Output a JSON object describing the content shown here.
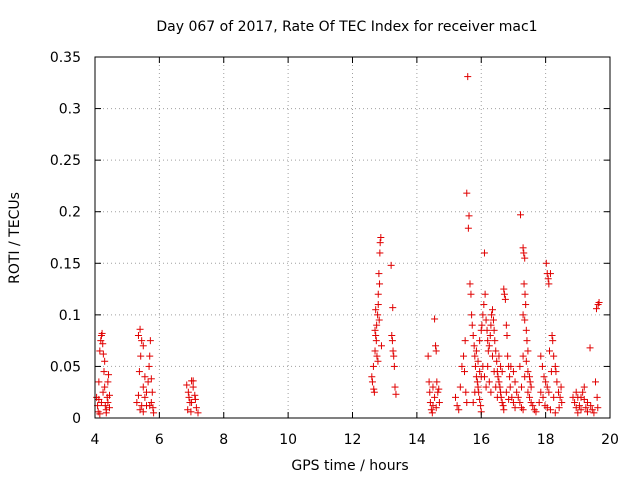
{
  "chart_data": {
    "type": "scatter",
    "title": "Day 067 of 2017, Rate Of TEC Index for receiver mac1",
    "xlabel": "GPS time / hours",
    "ylabel": "ROTI / TECUs",
    "xlim": [
      4,
      20
    ],
    "ylim": [
      0,
      0.35
    ],
    "x_ticks": [
      "4",
      "6",
      "8",
      "10",
      "12",
      "14",
      "16",
      "18",
      "20"
    ],
    "y_ticks": [
      "0",
      "0.05",
      "0.1",
      "0.15",
      "0.2",
      "0.25",
      "0.3",
      "0.35"
    ],
    "grid": true,
    "marker": "+",
    "color": "#e00000",
    "series": [
      {
        "name": "ROTI",
        "points": [
          [
            4.05,
            0.02
          ],
          [
            4.08,
            0.012
          ],
          [
            4.1,
            0.006
          ],
          [
            4.12,
            0.018
          ],
          [
            4.15,
            0.065
          ],
          [
            4.18,
            0.075
          ],
          [
            4.2,
            0.08
          ],
          [
            4.22,
            0.082
          ],
          [
            4.24,
            0.072
          ],
          [
            4.26,
            0.062
          ],
          [
            4.28,
            0.045
          ],
          [
            4.3,
            0.03
          ],
          [
            4.32,
            0.012
          ],
          [
            4.35,
            0.008
          ],
          [
            4.38,
            0.02
          ],
          [
            4.4,
            0.035
          ],
          [
            4.42,
            0.042
          ],
          [
            4.45,
            0.01
          ],
          [
            4.12,
            0.035
          ],
          [
            4.3,
            0.055
          ],
          [
            4.2,
            0.015
          ],
          [
            4.25,
            0.025
          ],
          [
            4.35,
            0.005
          ],
          [
            4.4,
            0.015
          ],
          [
            4.15,
            0.004
          ],
          [
            4.45,
            0.022
          ],
          [
            5.35,
            0.08
          ],
          [
            5.4,
            0.086
          ],
          [
            5.45,
            0.075
          ],
          [
            5.5,
            0.07
          ],
          [
            5.42,
            0.06
          ],
          [
            5.38,
            0.045
          ],
          [
            5.5,
            0.03
          ],
          [
            5.55,
            0.02
          ],
          [
            5.6,
            0.012
          ],
          [
            5.65,
            0.035
          ],
          [
            5.68,
            0.05
          ],
          [
            5.7,
            0.06
          ],
          [
            5.72,
            0.075
          ],
          [
            5.75,
            0.038
          ],
          [
            5.78,
            0.025
          ],
          [
            5.8,
            0.01
          ],
          [
            5.82,
            0.005
          ],
          [
            5.45,
            0.012
          ],
          [
            5.5,
            0.006
          ],
          [
            5.6,
            0.025
          ],
          [
            5.3,
            0.015
          ],
          [
            5.35,
            0.022
          ],
          [
            5.4,
            0.008
          ],
          [
            5.55,
            0.04
          ],
          [
            5.7,
            0.012
          ],
          [
            5.75,
            0.015
          ],
          [
            6.85,
            0.032
          ],
          [
            6.9,
            0.025
          ],
          [
            6.95,
            0.015
          ],
          [
            6.88,
            0.008
          ],
          [
            6.92,
            0.02
          ],
          [
            7.0,
            0.036
          ],
          [
            7.05,
            0.03
          ],
          [
            7.1,
            0.022
          ],
          [
            7.15,
            0.01
          ],
          [
            7.2,
            0.005
          ],
          [
            7.0,
            0.015
          ],
          [
            7.05,
            0.036
          ],
          [
            6.98,
            0.006
          ],
          [
            7.12,
            0.018
          ],
          [
            12.6,
            0.04
          ],
          [
            12.62,
            0.035
          ],
          [
            12.65,
            0.05
          ],
          [
            12.68,
            0.025
          ],
          [
            12.7,
            0.065
          ],
          [
            12.72,
            0.08
          ],
          [
            12.75,
            0.09
          ],
          [
            12.78,
            0.1
          ],
          [
            12.8,
            0.12
          ],
          [
            12.82,
            0.14
          ],
          [
            12.85,
            0.16
          ],
          [
            12.88,
            0.175
          ],
          [
            12.86,
            0.17
          ],
          [
            12.76,
            0.06
          ],
          [
            12.74,
            0.075
          ],
          [
            12.7,
            0.085
          ],
          [
            12.8,
            0.11
          ],
          [
            12.84,
            0.13
          ],
          [
            12.83,
            0.095
          ],
          [
            12.66,
            0.028
          ],
          [
            12.9,
            0.07
          ],
          [
            12.72,
            0.105
          ],
          [
            12.79,
            0.055
          ],
          [
            13.2,
            0.148
          ],
          [
            13.25,
            0.107
          ],
          [
            13.22,
            0.08
          ],
          [
            13.24,
            0.075
          ],
          [
            13.26,
            0.065
          ],
          [
            13.28,
            0.06
          ],
          [
            13.3,
            0.05
          ],
          [
            13.32,
            0.03
          ],
          [
            13.35,
            0.023
          ],
          [
            14.35,
            0.06
          ],
          [
            14.38,
            0.035
          ],
          [
            14.4,
            0.025
          ],
          [
            14.42,
            0.015
          ],
          [
            14.45,
            0.008
          ],
          [
            14.48,
            0.005
          ],
          [
            14.5,
            0.012
          ],
          [
            14.55,
            0.096
          ],
          [
            14.58,
            0.07
          ],
          [
            14.6,
            0.065
          ],
          [
            14.62,
            0.035
          ],
          [
            14.65,
            0.025
          ],
          [
            14.7,
            0.015
          ],
          [
            14.55,
            0.02
          ],
          [
            14.6,
            0.01
          ],
          [
            14.68,
            0.028
          ],
          [
            14.5,
            0.03
          ],
          [
            15.2,
            0.02
          ],
          [
            15.25,
            0.012
          ],
          [
            15.3,
            0.008
          ],
          [
            15.35,
            0.03
          ],
          [
            15.4,
            0.05
          ],
          [
            15.45,
            0.06
          ],
          [
            15.5,
            0.075
          ],
          [
            15.48,
            0.045
          ],
          [
            15.52,
            0.025
          ],
          [
            15.55,
            0.015
          ],
          [
            15.58,
            0.331
          ],
          [
            15.55,
            0.218
          ],
          [
            15.62,
            0.196
          ],
          [
            15.6,
            0.184
          ],
          [
            15.65,
            0.13
          ],
          [
            15.68,
            0.12
          ],
          [
            15.7,
            0.1
          ],
          [
            15.72,
            0.09
          ],
          [
            15.75,
            0.08
          ],
          [
            15.78,
            0.07
          ],
          [
            15.8,
            0.06
          ],
          [
            15.82,
            0.05
          ],
          [
            15.85,
            0.04
          ],
          [
            15.88,
            0.035
          ],
          [
            15.9,
            0.03
          ],
          [
            15.92,
            0.025
          ],
          [
            15.95,
            0.018
          ],
          [
            15.98,
            0.012
          ],
          [
            16.0,
            0.006
          ],
          [
            15.75,
            0.015
          ],
          [
            15.8,
            0.025
          ],
          [
            15.85,
            0.065
          ],
          [
            15.9,
            0.055
          ],
          [
            15.95,
            0.075
          ],
          [
            16.0,
            0.085
          ],
          [
            16.02,
            0.09
          ],
          [
            16.05,
            0.1
          ],
          [
            16.08,
            0.11
          ],
          [
            16.1,
            0.16
          ],
          [
            16.12,
            0.12
          ],
          [
            16.15,
            0.095
          ],
          [
            16.18,
            0.085
          ],
          [
            16.2,
            0.075
          ],
          [
            16.22,
            0.065
          ],
          [
            16.25,
            0.07
          ],
          [
            16.28,
            0.08
          ],
          [
            16.3,
            0.09
          ],
          [
            16.32,
            0.1
          ],
          [
            16.35,
            0.105
          ],
          [
            16.38,
            0.095
          ],
          [
            16.4,
            0.085
          ],
          [
            16.42,
            0.075
          ],
          [
            16.45,
            0.065
          ],
          [
            16.48,
            0.055
          ],
          [
            16.5,
            0.045
          ],
          [
            16.52,
            0.04
          ],
          [
            16.55,
            0.035
          ],
          [
            16.58,
            0.03
          ],
          [
            16.6,
            0.025
          ],
          [
            16.62,
            0.02
          ],
          [
            16.65,
            0.015
          ],
          [
            16.68,
            0.012
          ],
          [
            16.7,
            0.008
          ],
          [
            16.1,
            0.04
          ],
          [
            16.15,
            0.03
          ],
          [
            16.2,
            0.05
          ],
          [
            16.25,
            0.035
          ],
          [
            16.3,
            0.025
          ],
          [
            16.35,
            0.06
          ],
          [
            16.4,
            0.045
          ],
          [
            16.45,
            0.03
          ],
          [
            16.5,
            0.02
          ],
          [
            16.55,
            0.06
          ],
          [
            16.6,
            0.05
          ],
          [
            16.65,
            0.045
          ],
          [
            16.05,
            0.05
          ],
          [
            16.0,
            0.04
          ],
          [
            15.95,
            0.045
          ],
          [
            16.7,
            0.125
          ],
          [
            16.72,
            0.12
          ],
          [
            16.75,
            0.115
          ],
          [
            16.78,
            0.09
          ],
          [
            16.8,
            0.08
          ],
          [
            16.82,
            0.06
          ],
          [
            16.85,
            0.05
          ],
          [
            16.88,
            0.04
          ],
          [
            16.9,
            0.03
          ],
          [
            16.95,
            0.02
          ],
          [
            17.0,
            0.015
          ],
          [
            17.05,
            0.01
          ],
          [
            16.78,
            0.025
          ],
          [
            16.85,
            0.018
          ],
          [
            16.92,
            0.05
          ],
          [
            17.0,
            0.045
          ],
          [
            17.05,
            0.035
          ],
          [
            17.1,
            0.025
          ],
          [
            17.15,
            0.02
          ],
          [
            17.2,
            0.015
          ],
          [
            17.25,
            0.01
          ],
          [
            17.3,
            0.008
          ],
          [
            17.22,
            0.197
          ],
          [
            17.3,
            0.165
          ],
          [
            17.32,
            0.16
          ],
          [
            17.35,
            0.155
          ],
          [
            17.33,
            0.13
          ],
          [
            17.36,
            0.12
          ],
          [
            17.38,
            0.11
          ],
          [
            17.3,
            0.1
          ],
          [
            17.35,
            0.095
          ],
          [
            17.4,
            0.085
          ],
          [
            17.42,
            0.075
          ],
          [
            17.45,
            0.065
          ],
          [
            17.4,
            0.055
          ],
          [
            17.45,
            0.045
          ],
          [
            17.5,
            0.04
          ],
          [
            17.52,
            0.035
          ],
          [
            17.55,
            0.03
          ],
          [
            17.5,
            0.02
          ],
          [
            17.55,
            0.015
          ],
          [
            17.6,
            0.012
          ],
          [
            17.65,
            0.008
          ],
          [
            17.7,
            0.006
          ],
          [
            17.3,
            0.06
          ],
          [
            17.35,
            0.04
          ],
          [
            17.25,
            0.03
          ],
          [
            17.2,
            0.05
          ],
          [
            17.45,
            0.025
          ],
          [
            17.85,
            0.06
          ],
          [
            17.9,
            0.05
          ],
          [
            17.95,
            0.04
          ],
          [
            18.0,
            0.035
          ],
          [
            18.05,
            0.03
          ],
          [
            18.1,
            0.025
          ],
          [
            18.02,
            0.15
          ],
          [
            18.05,
            0.14
          ],
          [
            18.08,
            0.135
          ],
          [
            18.1,
            0.13
          ],
          [
            18.15,
            0.14
          ],
          [
            18.2,
            0.08
          ],
          [
            18.22,
            0.075
          ],
          [
            18.25,
            0.06
          ],
          [
            18.3,
            0.05
          ],
          [
            18.32,
            0.045
          ],
          [
            18.35,
            0.035
          ],
          [
            18.4,
            0.025
          ],
          [
            18.45,
            0.02
          ],
          [
            18.5,
            0.015
          ],
          [
            18.12,
            0.065
          ],
          [
            18.18,
            0.045
          ],
          [
            17.92,
            0.02
          ],
          [
            17.98,
            0.012
          ],
          [
            18.05,
            0.01
          ],
          [
            18.15,
            0.008
          ],
          [
            18.3,
            0.005
          ],
          [
            18.42,
            0.01
          ],
          [
            18.48,
            0.03
          ],
          [
            17.8,
            0.015
          ],
          [
            17.85,
            0.025
          ],
          [
            18.25,
            0.02
          ],
          [
            18.85,
            0.02
          ],
          [
            18.9,
            0.015
          ],
          [
            18.95,
            0.01
          ],
          [
            19.0,
            0.005
          ],
          [
            19.05,
            0.012
          ],
          [
            19.1,
            0.02
          ],
          [
            19.15,
            0.025
          ],
          [
            19.2,
            0.018
          ],
          [
            19.25,
            0.01
          ],
          [
            19.3,
            0.006
          ],
          [
            19.38,
            0.068
          ],
          [
            19.4,
            0.012
          ],
          [
            19.45,
            0.008
          ],
          [
            19.5,
            0.005
          ],
          [
            19.55,
            0.035
          ],
          [
            19.6,
            0.02
          ],
          [
            19.62,
            0.01
          ],
          [
            19.58,
            0.106
          ],
          [
            19.63,
            0.11
          ],
          [
            19.66,
            0.112
          ],
          [
            19.0,
            0.02
          ],
          [
            18.95,
            0.025
          ],
          [
            19.1,
            0.008
          ],
          [
            19.2,
            0.03
          ],
          [
            19.3,
            0.015
          ]
        ]
      }
    ]
  }
}
